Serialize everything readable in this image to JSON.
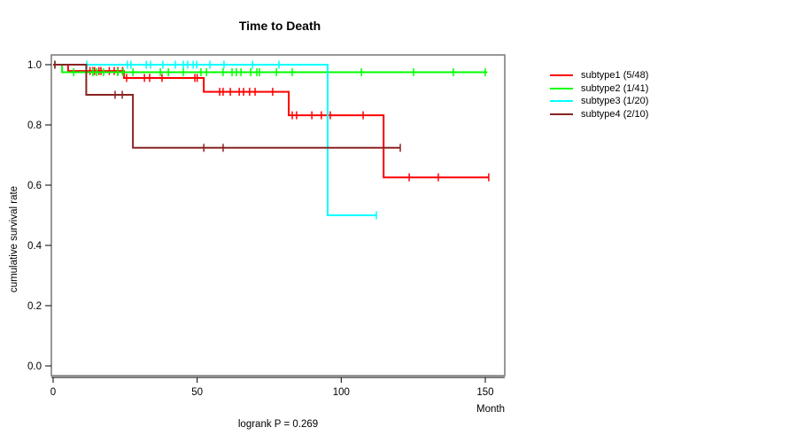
{
  "title": "Time to Death",
  "subtitle": "logrank P = 0.269",
  "axis_labels": {
    "x": "Month",
    "y": "cumulative survival rate"
  },
  "chart_data": {
    "type": "line",
    "subtype": "kaplan-meier-step",
    "title": "Time to Death",
    "xlabel": "Month",
    "ylabel": "cumulative survival rate",
    "annotation": "logrank P = 0.269",
    "xlim": [
      0,
      157
    ],
    "ylim": [
      0,
      1.04
    ],
    "grid": false,
    "legend_position": "right-outside",
    "x_axis": {
      "ticks": [
        0,
        50,
        100,
        150
      ],
      "tick_labels": [
        "0",
        "50",
        "100",
        "150"
      ]
    },
    "y_axis": {
      "ticks": [
        0,
        0.2,
        0.4,
        0.6,
        0.8,
        1.0
      ],
      "tick_labels": [
        "0.0",
        "0.2",
        "0.4",
        "0.6",
        "0.8",
        "1.0"
      ]
    },
    "series": [
      {
        "name": "subtype1 (5/48)",
        "color": "#ff0000",
        "events": 5,
        "n": 48,
        "points": [
          [
            0,
            1
          ],
          [
            5.2,
            1
          ],
          [
            5.2,
            0.979
          ],
          [
            24.6,
            0.979
          ],
          [
            24.6,
            0.956
          ],
          [
            52.3,
            0.956
          ],
          [
            52.3,
            0.91
          ],
          [
            81.8,
            0.91
          ],
          [
            81.8,
            0.832
          ],
          [
            114.7,
            0.832
          ],
          [
            114.7,
            0.626
          ],
          [
            151.2,
            0.626
          ]
        ],
        "censor_marks": [
          [
            0.6,
            1
          ],
          [
            12.8,
            0.979
          ],
          [
            13.8,
            0.979
          ],
          [
            14.4,
            0.979
          ],
          [
            15.9,
            0.979
          ],
          [
            16.6,
            0.979
          ],
          [
            19.5,
            0.979
          ],
          [
            21.2,
            0.979
          ],
          [
            22.5,
            0.979
          ],
          [
            24.1,
            0.979
          ],
          [
            25.5,
            0.956
          ],
          [
            31.7,
            0.956
          ],
          [
            33.5,
            0.956
          ],
          [
            37.8,
            0.956
          ],
          [
            49.2,
            0.956
          ],
          [
            50,
            0.956
          ],
          [
            57.8,
            0.91
          ],
          [
            59,
            0.91
          ],
          [
            61.5,
            0.91
          ],
          [
            64.6,
            0.91
          ],
          [
            66.1,
            0.91
          ],
          [
            68.2,
            0.91
          ],
          [
            70.1,
            0.91
          ],
          [
            76.2,
            0.91
          ],
          [
            83,
            0.832
          ],
          [
            84.5,
            0.832
          ],
          [
            89.8,
            0.832
          ],
          [
            93.1,
            0.832
          ],
          [
            96.2,
            0.832
          ],
          [
            107.6,
            0.832
          ],
          [
            123.6,
            0.626
          ],
          [
            133.7,
            0.626
          ],
          [
            151.2,
            0.626
          ]
        ]
      },
      {
        "name": "subtype2 (1/41)",
        "color": "#00ff00",
        "events": 1,
        "n": 41,
        "points": [
          [
            0,
            1
          ],
          [
            3.1,
            1
          ],
          [
            3.1,
            0.975
          ],
          [
            150.7,
            0.975
          ]
        ],
        "censor_marks": [
          [
            0.6,
            1
          ],
          [
            7.1,
            0.975
          ],
          [
            13.8,
            0.975
          ],
          [
            15.1,
            0.975
          ],
          [
            17.5,
            0.975
          ],
          [
            22.4,
            0.975
          ],
          [
            24.3,
            0.975
          ],
          [
            27.7,
            0.975
          ],
          [
            37.2,
            0.975
          ],
          [
            40,
            0.975
          ],
          [
            45.2,
            0.975
          ],
          [
            51.3,
            0.975
          ],
          [
            53.2,
            0.975
          ],
          [
            59,
            0.975
          ],
          [
            62.1,
            0.975
          ],
          [
            63.6,
            0.975
          ],
          [
            65.2,
            0.975
          ],
          [
            68.6,
            0.975
          ],
          [
            70.7,
            0.975
          ],
          [
            71.6,
            0.975
          ],
          [
            77.5,
            0.975
          ],
          [
            83,
            0.975
          ],
          [
            107,
            0.975
          ],
          [
            125.1,
            0.975
          ],
          [
            138.9,
            0.975
          ],
          [
            150,
            0.975
          ]
        ]
      },
      {
        "name": "subtype3 (1/20)",
        "color": "#00ffff",
        "events": 1,
        "n": 20,
        "points": [
          [
            0,
            1
          ],
          [
            95.3,
            1
          ],
          [
            95.3,
            0.5
          ],
          [
            112.2,
            0.5
          ]
        ],
        "censor_marks": [
          [
            11.7,
            1
          ],
          [
            25.8,
            1
          ],
          [
            27,
            1
          ],
          [
            32.3,
            1
          ],
          [
            33.8,
            1
          ],
          [
            38.1,
            1
          ],
          [
            42.4,
            1
          ],
          [
            45.2,
            1
          ],
          [
            46.7,
            1
          ],
          [
            48.6,
            1
          ],
          [
            49.8,
            1
          ],
          [
            54.4,
            1
          ],
          [
            59.3,
            1
          ],
          [
            69.2,
            1
          ],
          [
            78.4,
            1
          ],
          [
            112.2,
            0.5
          ]
        ]
      },
      {
        "name": "subtype4 (2/10)",
        "color": "#8b2323",
        "events": 2,
        "n": 10,
        "points": [
          [
            0,
            1
          ],
          [
            11.5,
            1
          ],
          [
            11.5,
            0.9
          ],
          [
            27.7,
            0.9
          ],
          [
            27.7,
            0.724
          ],
          [
            120.5,
            0.724
          ]
        ],
        "censor_marks": [
          [
            0.6,
            1
          ],
          [
            21.5,
            0.9
          ],
          [
            24,
            0.9
          ],
          [
            52.3,
            0.724
          ],
          [
            59,
            0.724
          ],
          [
            120.5,
            0.724
          ]
        ]
      }
    ]
  },
  "colors": {
    "axis": "#000000",
    "box": "#7f7f7f",
    "background": "#ffffff"
  }
}
